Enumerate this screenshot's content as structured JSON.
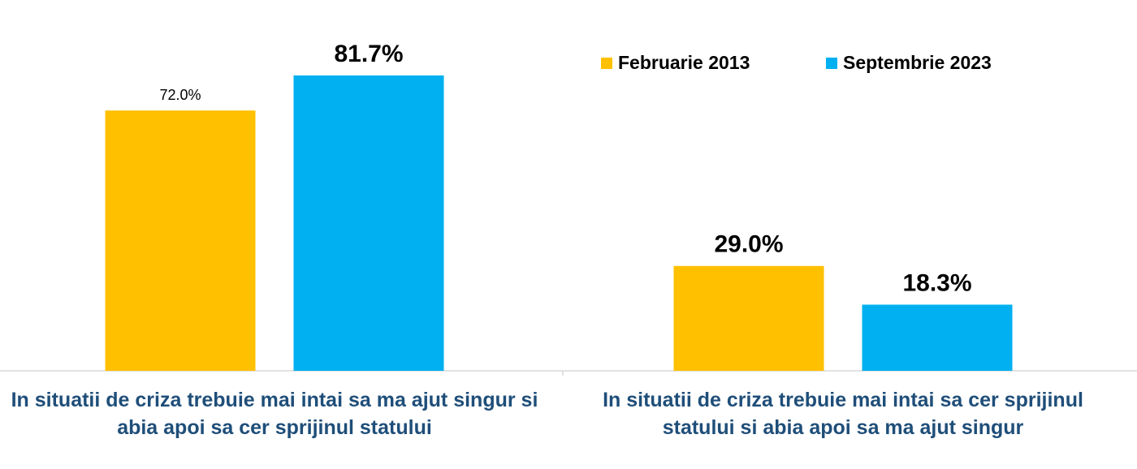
{
  "chart_data": {
    "type": "bar",
    "categories": [
      "In situatii de criza trebuie mai intai sa ma ajut singur si abia apoi sa cer sprijinul statului",
      "In situatii de criza trebuie mai intai sa cer sprijinul statului si abia apoi sa ma ajut singur"
    ],
    "series": [
      {
        "name": "Februarie 2013",
        "color": "#ffc000",
        "values": [
          72.0,
          29.0
        ],
        "value_labels": [
          "72.0%",
          "29.0%"
        ]
      },
      {
        "name": "Septembrie 2023",
        "color": "#00b0f0",
        "values": [
          81.7,
          18.3
        ],
        "value_labels": [
          "81.7%",
          "18.3%"
        ]
      }
    ],
    "ylim": [
      0,
      90
    ],
    "legend": "top-right"
  }
}
